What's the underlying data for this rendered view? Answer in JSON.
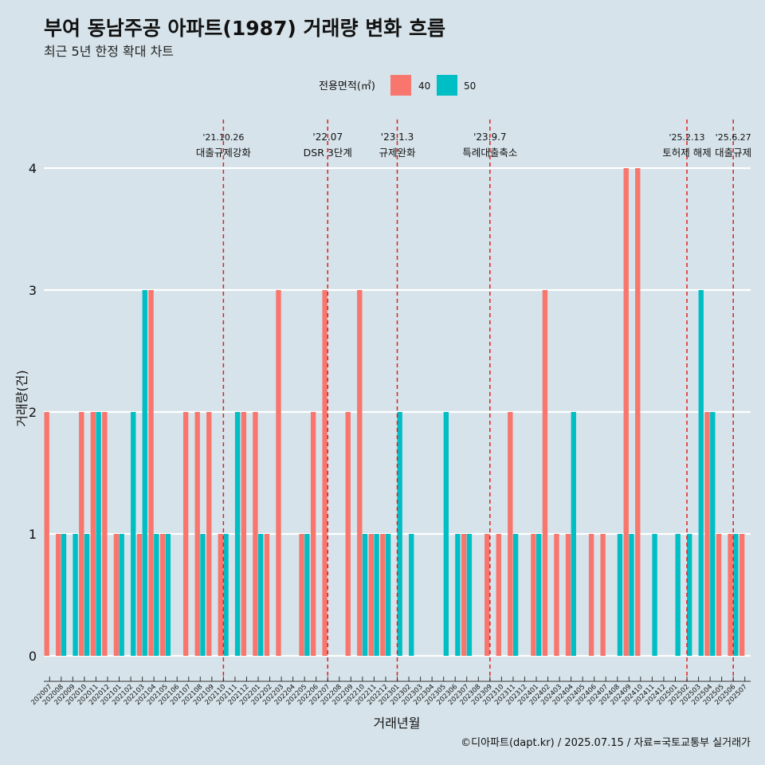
{
  "chart_data": {
    "type": "bar",
    "title": "부여 동남주공 아파트(1987) 거래량 변화 흐름",
    "subtitle": "최근 5년 한정 확대 차트",
    "xlabel": "거래년월",
    "ylabel": "거래량(건)",
    "ylim": [
      0,
      4
    ],
    "yticks": [
      0,
      1,
      2,
      3,
      4
    ],
    "grid": true,
    "legend": {
      "title": "전용면적(㎡)",
      "position": "top",
      "entries": [
        {
          "name": "40",
          "color": "#f8766d"
        },
        {
          "name": "50",
          "color": "#00bfc4"
        }
      ]
    },
    "categories": [
      "202007",
      "202008",
      "202009",
      "202010",
      "202011",
      "202012",
      "202101",
      "202102",
      "202103",
      "202104",
      "202105",
      "202106",
      "202107",
      "202108",
      "202109",
      "202110",
      "202111",
      "202112",
      "202201",
      "202202",
      "202203",
      "202204",
      "202205",
      "202206",
      "202207",
      "202208",
      "202209",
      "202210",
      "202211",
      "202212",
      "202301",
      "202302",
      "202303",
      "202304",
      "202305",
      "202306",
      "202307",
      "202308",
      "202309",
      "202310",
      "202311",
      "202312",
      "202401",
      "202402",
      "202403",
      "202404",
      "202405",
      "202406",
      "202407",
      "202408",
      "202409",
      "202410",
      "202411",
      "202412",
      "202501",
      "202502",
      "202503",
      "202504",
      "202505",
      "202506",
      "202507"
    ],
    "series": [
      {
        "name": "40",
        "color": "#f8766d",
        "values": [
          2,
          1,
          0,
          2,
          2,
          2,
          1,
          0,
          1,
          3,
          1,
          0,
          2,
          2,
          2,
          1,
          0,
          2,
          2,
          1,
          3,
          0,
          1,
          2,
          3,
          0,
          2,
          3,
          1,
          1,
          0,
          0,
          0,
          0,
          0,
          0,
          1,
          0,
          1,
          1,
          2,
          0,
          1,
          3,
          1,
          1,
          0,
          1,
          1,
          0,
          4,
          4,
          0,
          0,
          0,
          0,
          0,
          2,
          1,
          1,
          1
        ]
      },
      {
        "name": "50",
        "color": "#00bfc4",
        "values": [
          0,
          1,
          1,
          1,
          2,
          0,
          1,
          2,
          3,
          1,
          1,
          0,
          0,
          1,
          0,
          1,
          2,
          0,
          1,
          0,
          0,
          0,
          1,
          0,
          0,
          0,
          0,
          1,
          1,
          1,
          2,
          1,
          0,
          0,
          2,
          1,
          1,
          0,
          0,
          0,
          1,
          0,
          1,
          0,
          0,
          2,
          0,
          0,
          0,
          1,
          1,
          0,
          1,
          0,
          1,
          1,
          3,
          2,
          0,
          1,
          0
        ]
      }
    ],
    "annotations": [
      {
        "category": "202110",
        "date": "'21.10.26",
        "label": "대출규제강화"
      },
      {
        "category": "202207",
        "date": "'22.07",
        "label": "DSR 3단계"
      },
      {
        "category": "202301",
        "date": "'23.1.3",
        "label": "규제완화"
      },
      {
        "category": "202309",
        "date": "'23.9.7",
        "label": "특례대출축소"
      },
      {
        "category": "202502",
        "date": "'25.2.13",
        "label": "토허제 해제"
      },
      {
        "category": "202506",
        "date": "'25.6.27",
        "label": "대출규제"
      }
    ],
    "caption": "©디아파트(dapt.kr) / 2025.07.15 / 자료=국토교통부 실거래가"
  }
}
